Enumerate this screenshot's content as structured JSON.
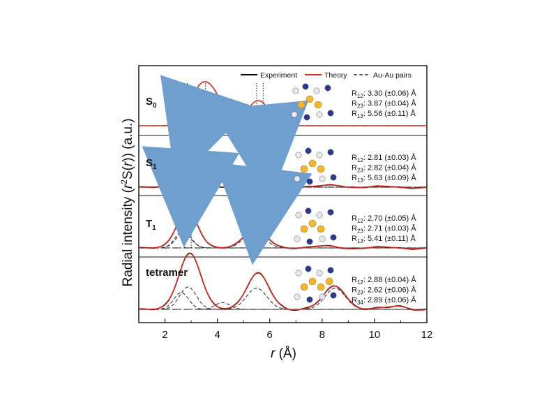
{
  "chart_data": {
    "type": "line",
    "xlabel": {
      "var": "r",
      "unit": " (Å)"
    },
    "ylabel": {
      "pre": "Radial intensity (",
      "r2": "r",
      "sup": "2",
      "mid": "S(",
      "r": "r",
      "post": ")) (a.u.)"
    },
    "xlim": [
      1,
      12
    ],
    "xticks": [
      2,
      4,
      6,
      8,
      10,
      12
    ],
    "legend": {
      "placement": "top-right",
      "entries": [
        {
          "label": "Experiment",
          "color": "#000000",
          "style": "solid"
        },
        {
          "label": "Theory",
          "color": "#d62a1e",
          "style": "solid"
        },
        {
          "label": "Au-Au pairs",
          "color": "#333333",
          "style": "dashed"
        }
      ]
    },
    "colors": {
      "experiment": "#000000",
      "theory": "#d62a1e",
      "pairs": "#3a3a3a",
      "arrow": "#6f9fcf"
    },
    "panels": [
      {
        "label": "S",
        "sub": "0",
        "params": [
          {
            "sub": "12",
            "value": ": 3.30 (±0.06) Å"
          },
          {
            "sub": "23",
            "value": ": 3.87 (±0.04) Å"
          },
          {
            "sub": "13",
            "value": ": 5.56 (±0.11) Å"
          }
        ],
        "peaks": [
          {
            "r": 3.3,
            "a": 0.75,
            "w": 0.55
          },
          {
            "r": 3.87,
            "a": 0.62,
            "w": 0.55
          },
          {
            "r": 5.56,
            "a": 0.6,
            "w": 0.6
          }
        ],
        "pairs": [
          {
            "r": 3.3,
            "a": 0.45,
            "w": 0.45
          },
          {
            "r": 3.87,
            "a": 0.42,
            "w": 0.45
          },
          {
            "r": 5.56,
            "a": 0.45,
            "w": 0.55
          }
        ],
        "markers": [
          2.85,
          3.55,
          5.5,
          5.75
        ],
        "has_experiment": false
      },
      {
        "label": "S",
        "sub": "1",
        "params": [
          {
            "sub": "12",
            "value": ": 2.81 (±0.03) Å"
          },
          {
            "sub": "23",
            "value": ": 2.82 (±0.04) Å"
          },
          {
            "sub": "13",
            "value": ": 5.63 (±0.09) Å"
          }
        ],
        "peaks": [
          {
            "r": 2.9,
            "a": 1.0,
            "w": 0.55
          },
          {
            "r": 5.7,
            "a": 0.52,
            "w": 0.65
          },
          {
            "r": 8.5,
            "a": 0.05,
            "w": 0.6
          }
        ],
        "pairs": [
          {
            "r": 2.81,
            "a": 0.45,
            "w": 0.4
          },
          {
            "r": 2.82,
            "a": 0.35,
            "w": 0.4
          },
          {
            "r": 5.63,
            "a": 0.42,
            "w": 0.55
          }
        ],
        "markers": [
          2.85,
          3.0,
          5.6,
          5.8
        ],
        "has_experiment": true
      },
      {
        "label": "T",
        "sub": "1",
        "params": [
          {
            "sub": "12",
            "value": ": 2.70 (±0.05) Å"
          },
          {
            "sub": "23",
            "value": ": 2.71 (±0.03) Å"
          },
          {
            "sub": "13",
            "value": ": 5.41 (±0.11) Å"
          }
        ],
        "peaks": [
          {
            "r": 2.85,
            "a": 0.95,
            "w": 0.55
          },
          {
            "r": 5.45,
            "a": 0.48,
            "w": 0.6
          },
          {
            "r": 8.2,
            "a": 0.04,
            "w": 0.6
          }
        ],
        "pairs": [
          {
            "r": 2.7,
            "a": 0.45,
            "w": 0.4
          },
          {
            "r": 2.71,
            "a": 0.38,
            "w": 0.4
          },
          {
            "r": 5.41,
            "a": 0.4,
            "w": 0.55
          }
        ],
        "markers": [
          2.75,
          3.0,
          5.45,
          5.7
        ],
        "has_experiment": true
      },
      {
        "label": "tetramer",
        "sub": "",
        "params": [
          {
            "sub": "12",
            "value": ": 2.88 (±0.04) Å"
          },
          {
            "sub": "23",
            "value": ": 2.62 (±0.06) Å"
          },
          {
            "sub": "34",
            "value": ": 2.89 (±0.06) Å"
          }
        ],
        "peaks": [
          {
            "r": 2.95,
            "a": 1.0,
            "w": 0.6
          },
          {
            "r": 5.55,
            "a": 0.65,
            "w": 0.6
          },
          {
            "r": 8.5,
            "a": 0.42,
            "w": 0.6
          },
          {
            "r": 11.0,
            "a": 0.06,
            "w": 0.5
          }
        ],
        "pairs": [
          {
            "r": 2.88,
            "a": 0.4,
            "w": 0.45
          },
          {
            "r": 2.62,
            "a": 0.3,
            "w": 0.4
          },
          {
            "r": 5.5,
            "a": 0.38,
            "w": 0.55
          },
          {
            "r": 8.5,
            "a": 0.38,
            "w": 0.55
          },
          {
            "r": 4.2,
            "a": 0.12,
            "w": 0.4
          }
        ],
        "markers": [],
        "has_experiment": true
      }
    ]
  }
}
